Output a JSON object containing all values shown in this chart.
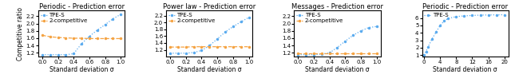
{
  "panels": [
    {
      "title": "Periodic - Prediction error",
      "xlabel": "Standard deviation σ",
      "ylabel": "Competitive ratio",
      "xlim": [
        -0.05,
        1.05
      ],
      "xticks": [
        0.0,
        0.2,
        0.4,
        0.6,
        0.8,
        1.0
      ],
      "ylim": [
        1.1,
        2.35
      ],
      "yticks": [
        1.2,
        1.4,
        1.6,
        1.8,
        2.0,
        2.2
      ],
      "tpe_x": [
        0.0,
        0.1,
        0.2,
        0.3,
        0.4,
        0.5,
        0.6,
        0.7,
        0.8,
        0.9,
        1.0
      ],
      "tpe_y": [
        1.15,
        1.15,
        1.15,
        1.15,
        1.18,
        1.45,
        1.65,
        1.82,
        1.97,
        2.13,
        2.25
      ],
      "comp_x": [
        0.0,
        0.1,
        0.2,
        0.3,
        0.4,
        0.5,
        0.6,
        0.7,
        0.8,
        0.9,
        1.0
      ],
      "comp_y": [
        1.68,
        1.64,
        1.62,
        1.61,
        1.6,
        1.6,
        1.59,
        1.59,
        1.59,
        1.59,
        1.59
      ],
      "has_comp": true,
      "has_legend": true
    },
    {
      "title": "Power law - Prediction error",
      "xlabel": "Standard deviation σ",
      "ylabel": "",
      "xlim": [
        -0.05,
        1.05
      ],
      "xticks": [
        0.0,
        0.2,
        0.4,
        0.6,
        0.8,
        1.0
      ],
      "ylim": [
        1.0,
        2.35
      ],
      "yticks": [
        1.2,
        1.4,
        1.6,
        1.8,
        2.0,
        2.2
      ],
      "tpe_x": [
        0.0,
        0.1,
        0.2,
        0.3,
        0.4,
        0.5,
        0.6,
        0.7,
        0.8,
        0.9,
        1.0
      ],
      "tpe_y": [
        1.1,
        1.1,
        1.1,
        1.12,
        1.18,
        1.32,
        1.52,
        1.72,
        1.88,
        2.02,
        2.15
      ],
      "comp_x": [
        0.0,
        0.1,
        0.2,
        0.3,
        0.4,
        0.5,
        0.6,
        0.7,
        0.8,
        0.9,
        1.0
      ],
      "comp_y": [
        1.28,
        1.28,
        1.28,
        1.29,
        1.29,
        1.29,
        1.29,
        1.29,
        1.29,
        1.29,
        1.29
      ],
      "has_comp": true,
      "has_legend": true
    },
    {
      "title": "Messages - Prediction error",
      "xlabel": "Standard deviation σ",
      "ylabel": "",
      "xlim": [
        -0.05,
        1.05
      ],
      "xticks": [
        0.0,
        0.2,
        0.4,
        0.6,
        0.8,
        1.0
      ],
      "ylim": [
        1.1,
        2.35
      ],
      "yticks": [
        1.2,
        1.4,
        1.6,
        1.8,
        2.0,
        2.2
      ],
      "tpe_x": [
        0.0,
        0.1,
        0.2,
        0.3,
        0.4,
        0.5,
        0.6,
        0.7,
        0.8,
        0.9,
        1.0
      ],
      "tpe_y": [
        1.15,
        1.15,
        1.15,
        1.17,
        1.2,
        1.35,
        1.52,
        1.68,
        1.8,
        1.89,
        1.92
      ],
      "comp_x": [
        0.0,
        0.1,
        0.2,
        0.3,
        0.4,
        0.5,
        0.6,
        0.7,
        0.8,
        0.9,
        1.0
      ],
      "comp_y": [
        1.18,
        1.18,
        1.18,
        1.18,
        1.18,
        1.18,
        1.18,
        1.18,
        1.18,
        1.18,
        1.18
      ],
      "has_comp": true,
      "has_legend": true
    },
    {
      "title": "Periodic - Prediction error",
      "xlabel": "Standard deviation σ",
      "ylabel": "",
      "xlim": [
        -0.5,
        21.0
      ],
      "xticks": [
        0,
        4,
        8,
        12,
        16,
        20
      ],
      "ylim": [
        0.8,
        7.0
      ],
      "yticks": [
        1,
        2,
        3,
        4,
        5,
        6
      ],
      "tpe_x": [
        0.0,
        0.5,
        1.0,
        2.0,
        3.0,
        4.0,
        5.0,
        6.0,
        8.0,
        10.0,
        12.0,
        14.0,
        16.0,
        18.0,
        20.0
      ],
      "tpe_y": [
        1.0,
        1.5,
        2.1,
        3.2,
        4.1,
        5.0,
        5.6,
        5.95,
        6.2,
        6.3,
        6.35,
        6.4,
        6.42,
        6.44,
        6.45
      ],
      "comp_x": [],
      "comp_y": [],
      "has_comp": false,
      "has_legend": true
    }
  ],
  "tpe_color": "#5aabef",
  "comp_color": "#f5a342",
  "tpe_label": "TPE-S",
  "comp_label": "2-competitive",
  "title_fontsize": 6.0,
  "label_fontsize": 5.5,
  "tick_fontsize": 5.0,
  "legend_fontsize": 5.0,
  "linewidth": 0.9,
  "marker": "o",
  "markersize": 1.5,
  "linestyle_tpe": "dotted",
  "linestyle_comp": "dashed"
}
